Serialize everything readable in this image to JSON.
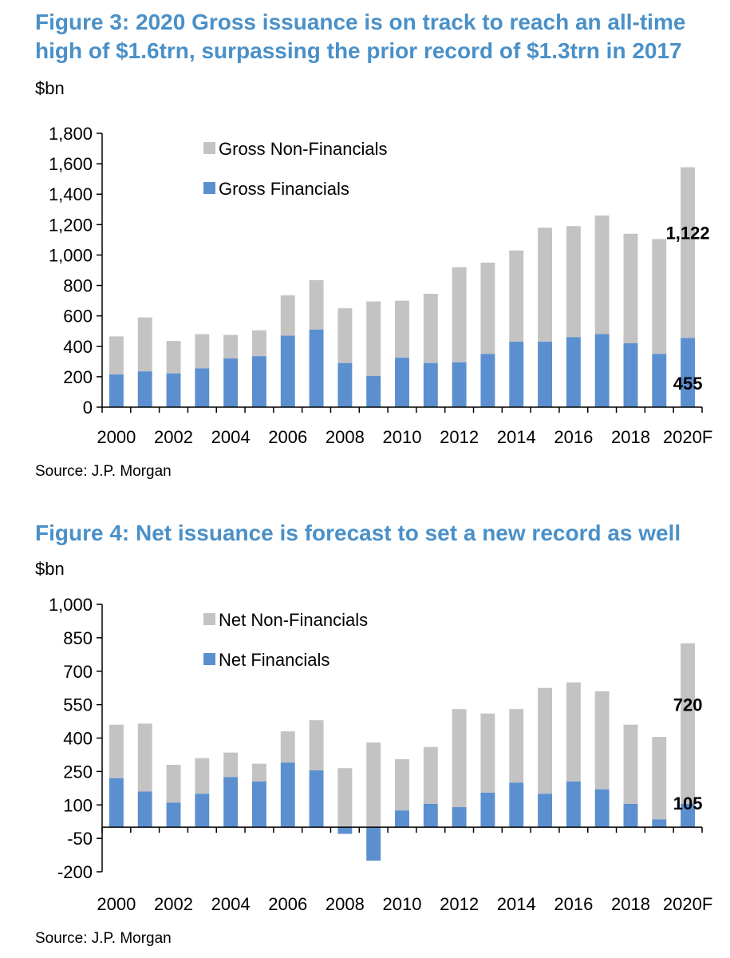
{
  "colors": {
    "title": "#4a90c8",
    "financials": "#5b8fd0",
    "non_financials": "#c3c3c3"
  },
  "chart_data": [
    {
      "type": "bar",
      "stacked": true,
      "title": "Figure 3: 2020 Gross issuance is on track to reach an all-time high of $1.6trn, surpassing the prior record of $1.3trn in 2017",
      "unit": "$bn",
      "source": "Source: J.P. Morgan",
      "categories": [
        "2000",
        "2001",
        "2002",
        "2003",
        "2004",
        "2005",
        "2006",
        "2007",
        "2008",
        "2009",
        "2010",
        "2011",
        "2012",
        "2013",
        "2014",
        "2015",
        "2016",
        "2017",
        "2018",
        "2019",
        "2020F"
      ],
      "x_tick_labels": [
        "2000",
        "2002",
        "2004",
        "2006",
        "2008",
        "2010",
        "2012",
        "2014",
        "2016",
        "2018",
        "2020F"
      ],
      "ylim": [
        0,
        1800
      ],
      "y_ticks": [
        0,
        200,
        400,
        600,
        800,
        1000,
        1200,
        1400,
        1600,
        1800
      ],
      "y_tick_labels": [
        "0",
        "200",
        "400",
        "600",
        "800",
        "1,000",
        "1,200",
        "1,400",
        "1,600",
        "1,800"
      ],
      "legend_placement": "top-left",
      "series": [
        {
          "name": "Gross Financials",
          "color": "#5b8fd0",
          "values": [
            215,
            235,
            222,
            255,
            320,
            335,
            470,
            510,
            290,
            205,
            325,
            290,
            295,
            350,
            430,
            430,
            460,
            480,
            420,
            350,
            455
          ]
        },
        {
          "name": "Gross Non-Financials",
          "color": "#c3c3c3",
          "values": [
            250,
            355,
            213,
            225,
            155,
            170,
            265,
            325,
            360,
            490,
            375,
            455,
            625,
            600,
            600,
            750,
            730,
            780,
            720,
            755,
            1122
          ]
        }
      ],
      "data_labels": [
        {
          "category": "2020F",
          "series": "Gross Non-Financials",
          "text": "1,122"
        },
        {
          "category": "2020F",
          "series": "Gross Financials",
          "text": "455"
        }
      ]
    },
    {
      "type": "bar",
      "stacked": true,
      "title": "Figure 4: Net issuance is forecast to set a new record as well",
      "unit": "$bn",
      "source": "Source: J.P. Morgan",
      "categories": [
        "2000",
        "2001",
        "2002",
        "2003",
        "2004",
        "2005",
        "2006",
        "2007",
        "2008",
        "2009",
        "2010",
        "2011",
        "2012",
        "2013",
        "2014",
        "2015",
        "2016",
        "2017",
        "2018",
        "2019",
        "2020F"
      ],
      "x_tick_labels": [
        "2000",
        "2002",
        "2004",
        "2006",
        "2008",
        "2010",
        "2012",
        "2014",
        "2016",
        "2018",
        "2020F"
      ],
      "ylim": [
        -200,
        1000
      ],
      "y_ticks": [
        -200,
        -50,
        100,
        250,
        400,
        550,
        700,
        850,
        1000
      ],
      "y_tick_labels": [
        "-200",
        "-50",
        "100",
        "250",
        "400",
        "550",
        "700",
        "850",
        "1,000"
      ],
      "legend_placement": "top-left",
      "series": [
        {
          "name": "Net Financials",
          "color": "#5b8fd0",
          "values": [
            220,
            160,
            110,
            150,
            225,
            205,
            290,
            255,
            -30,
            -150,
            75,
            105,
            90,
            155,
            200,
            150,
            205,
            170,
            105,
            35,
            105
          ]
        },
        {
          "name": "Net Non-Financials",
          "color": "#c3c3c3",
          "values": [
            240,
            305,
            170,
            160,
            110,
            80,
            140,
            225,
            265,
            380,
            230,
            255,
            440,
            355,
            330,
            475,
            445,
            440,
            355,
            370,
            720
          ]
        }
      ],
      "data_labels": [
        {
          "category": "2020F",
          "series": "Net Non-Financials",
          "text": "720"
        },
        {
          "category": "2020F",
          "series": "Net Financials",
          "text": "105"
        }
      ]
    }
  ]
}
